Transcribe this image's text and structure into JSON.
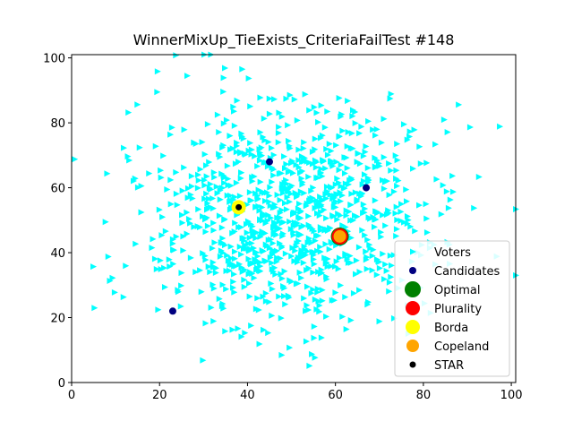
{
  "chart_data": {
    "type": "scatter",
    "title": "WinnerMixUp_TieExists_CriteriaFailTest #148",
    "xlabel": "",
    "ylabel": "",
    "xlim": [
      0,
      101
    ],
    "ylim": [
      0,
      101
    ],
    "xticks": [
      0,
      20,
      40,
      60,
      80,
      100
    ],
    "yticks": [
      0,
      20,
      40,
      60,
      80,
      100
    ],
    "grid": false,
    "legend_position": "lower-right",
    "voter_distribution": {
      "count": 1000,
      "center": [
        50,
        52
      ],
      "spread": [
        16,
        17
      ],
      "seed": 148
    },
    "series": [
      {
        "name": "Voters",
        "marker": "triangle-right",
        "color": "#00ffff",
        "points": []
      },
      {
        "name": "Candidates",
        "marker": "circle",
        "color": "#000080",
        "points": [
          [
            45,
            68
          ],
          [
            67,
            60
          ],
          [
            23,
            22
          ],
          [
            38,
            54
          ],
          [
            61,
            45
          ]
        ]
      },
      {
        "name": "Optimal",
        "marker": "circle",
        "color": "#008000",
        "points": [
          [
            61,
            45
          ]
        ]
      },
      {
        "name": "Plurality",
        "marker": "circle",
        "color": "#ff0000",
        "points": [
          [
            61,
            45
          ]
        ]
      },
      {
        "name": "Borda",
        "marker": "circle",
        "color": "#ffff00",
        "points": [
          [
            38,
            54
          ]
        ]
      },
      {
        "name": "Copeland",
        "marker": "circle",
        "color": "#ffa500",
        "points": [
          [
            61,
            45
          ]
        ]
      },
      {
        "name": "STAR",
        "marker": "circle",
        "color": "#000000",
        "points": [
          [
            38,
            54
          ]
        ]
      }
    ]
  }
}
